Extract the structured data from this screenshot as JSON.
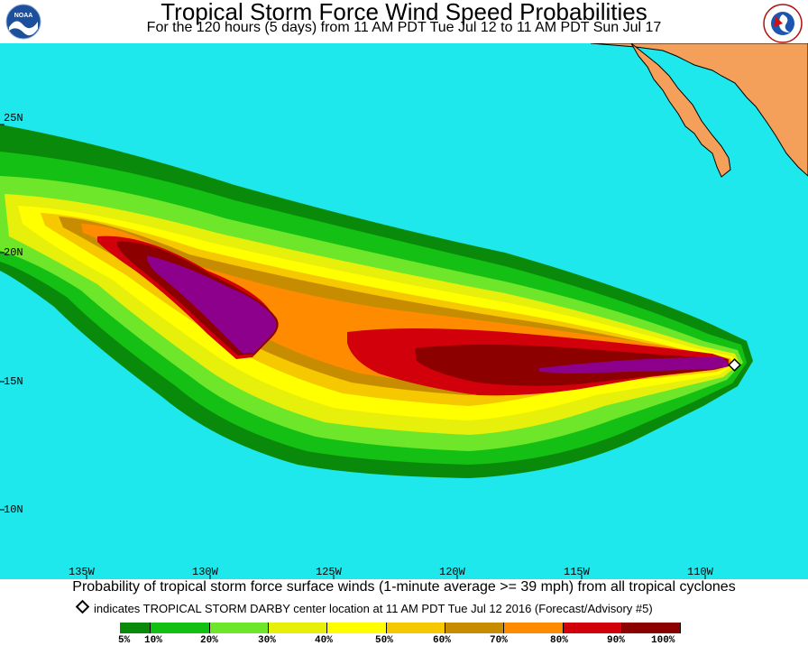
{
  "header": {
    "title": "Tropical Storm Force Wind Speed Probabilities",
    "subtitle": "For the 120 hours (5 days) from 11 AM PDT Tue Jul 12 to 11 AM PDT Sun Jul 17",
    "left_logo_text": "NOAA",
    "right_logo_text": "NATIONAL WEATHER SERVICE"
  },
  "map": {
    "ocean_color": "#1ee8ec",
    "land_color": "#f5a05a",
    "latitude_labels": [
      "25N",
      "20N",
      "15N",
      "10N"
    ],
    "longitude_labels": [
      "135W",
      "130W",
      "125W",
      "120W",
      "115W",
      "110W"
    ],
    "storm_marker": "diamond"
  },
  "caption": "Probability of tropical storm force surface winds (1-minute average >= 39 mph) from all tropical cyclones",
  "note": "indicates TROPICAL STORM DARBY center location at 11 AM PDT Tue Jul 12 2016 (Forecast/Advisory #5)",
  "legend": {
    "labels": [
      "5%",
      "10%",
      "20%",
      "30%",
      "40%",
      "50%",
      "60%",
      "70%",
      "80%",
      "90%",
      "100%"
    ],
    "colors": [
      "#0a8a0a",
      "#14c014",
      "#6ee62a",
      "#e6f00a",
      "#ffff00",
      "#f5c800",
      "#c88c00",
      "#ff8c00",
      "#d2000a",
      "#8c0000",
      "#8c008c"
    ]
  }
}
